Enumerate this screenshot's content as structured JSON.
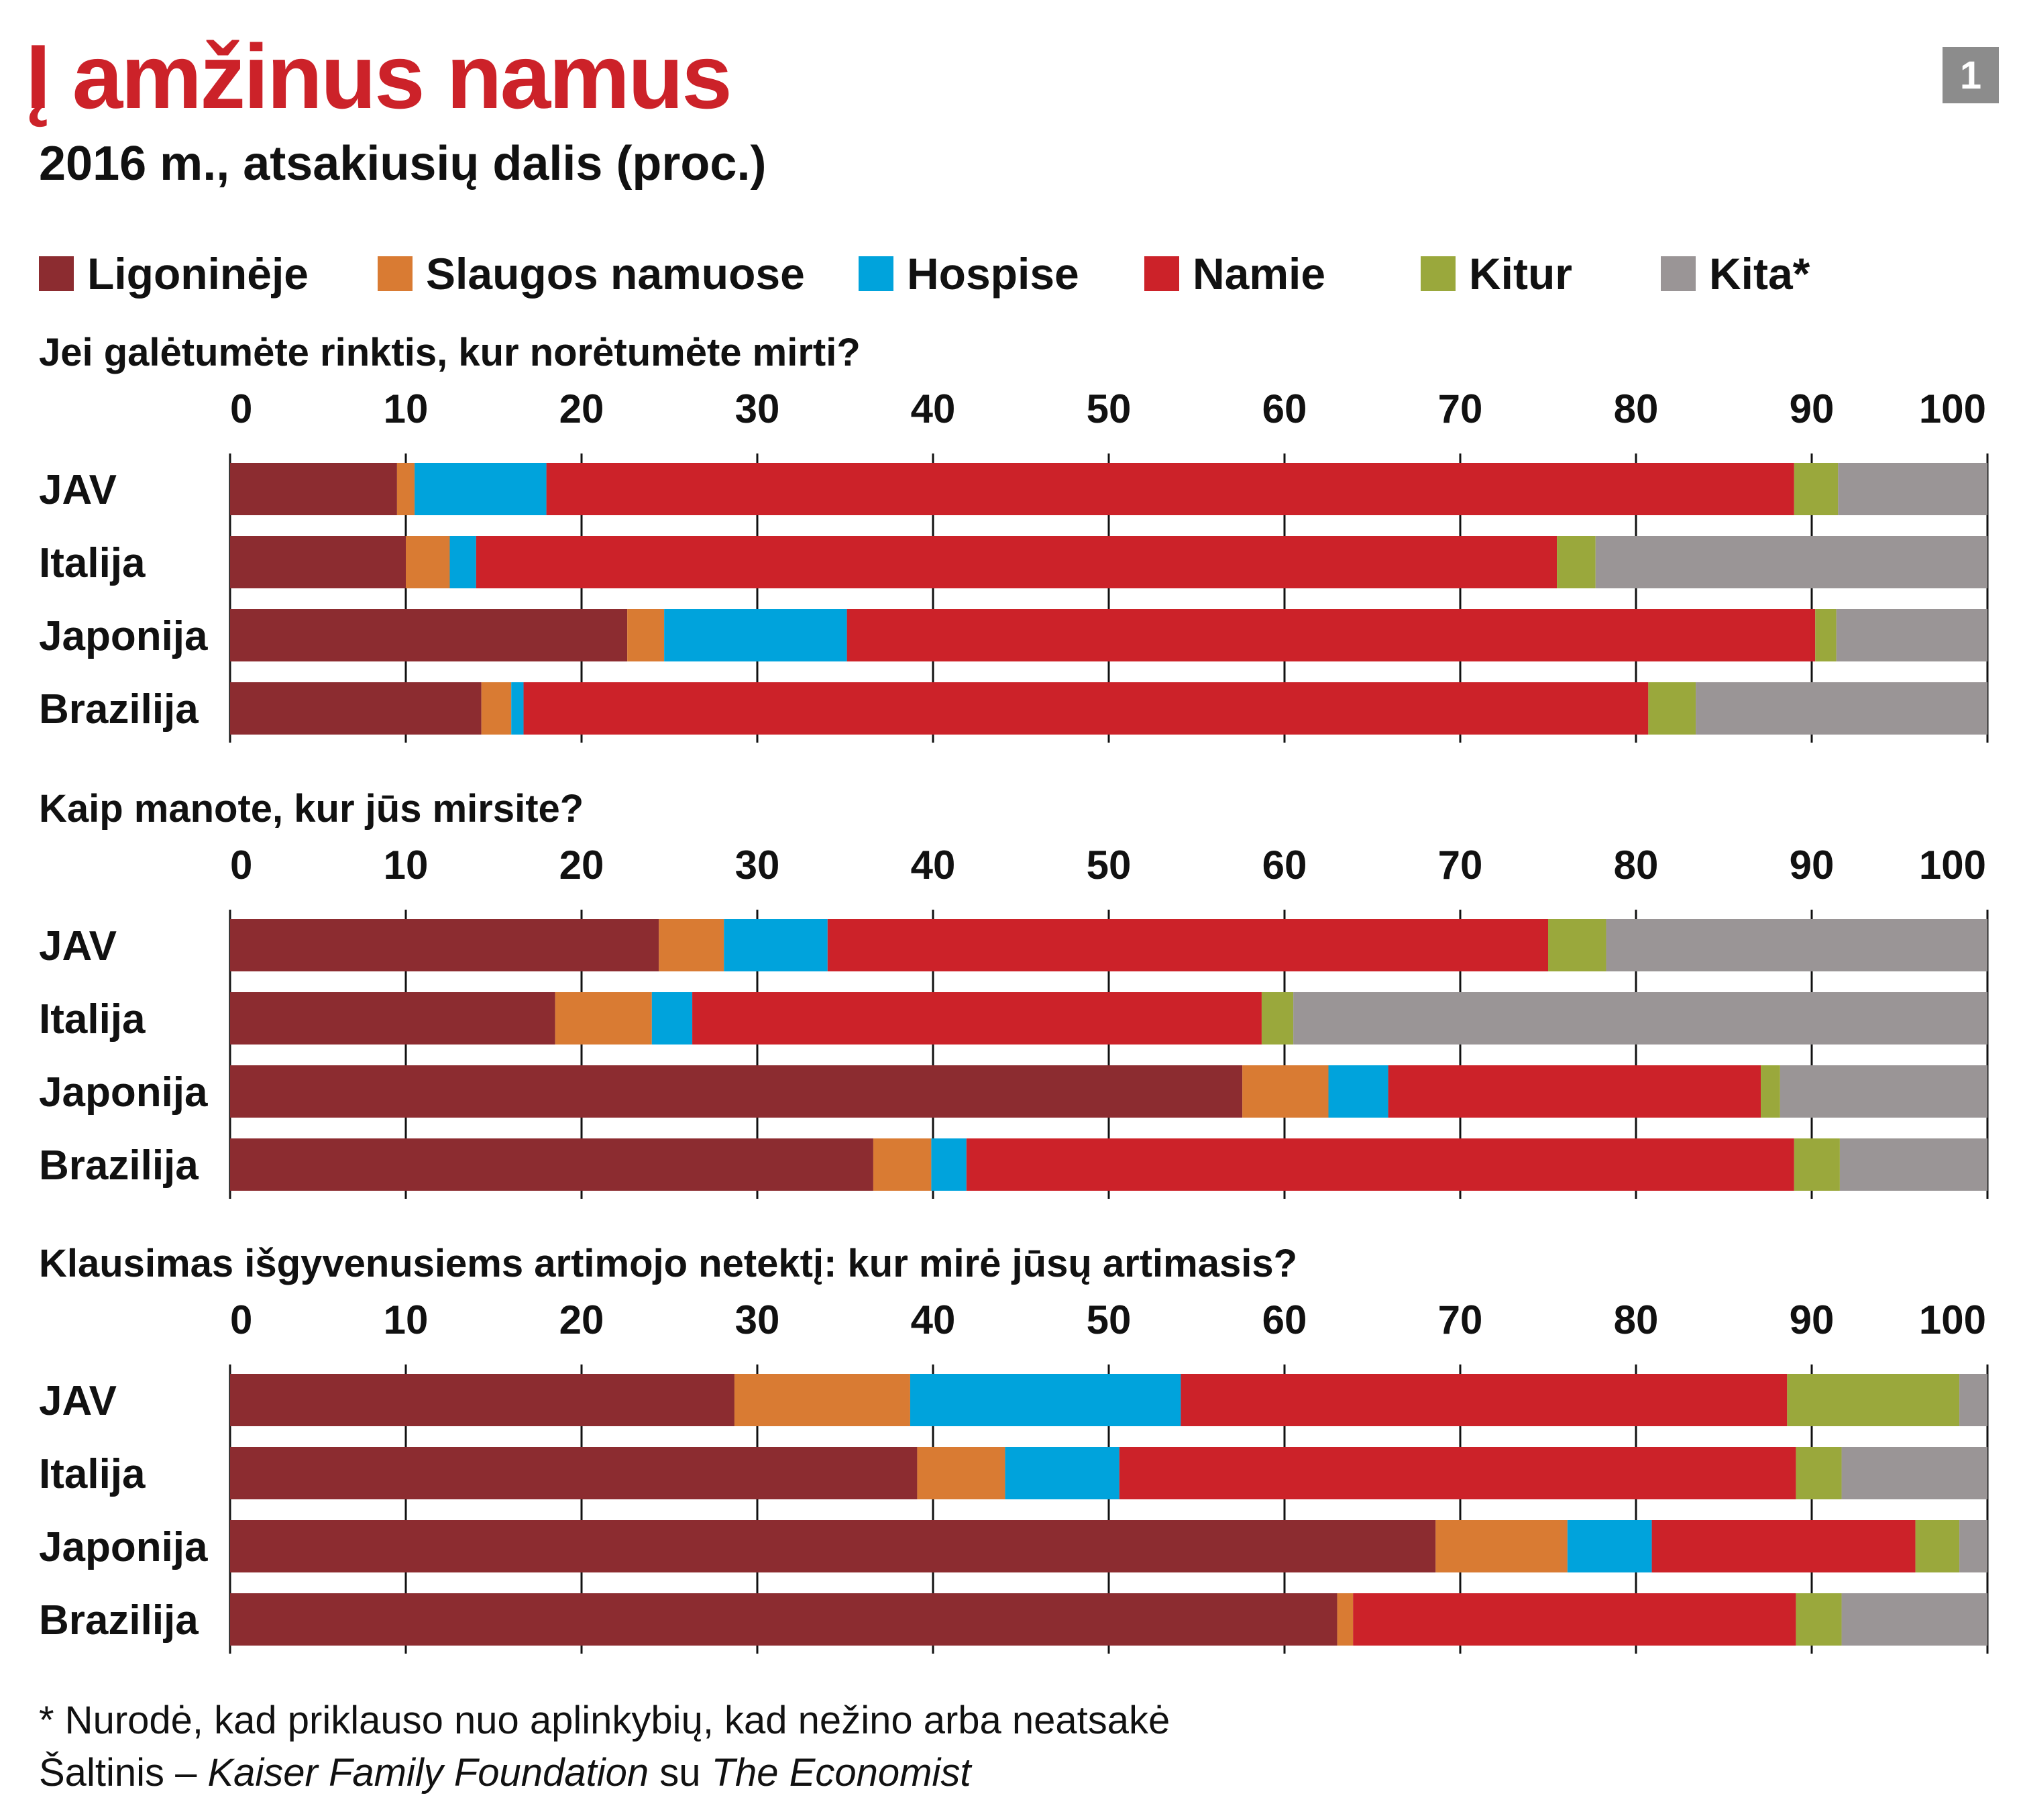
{
  "title": "Į amžinus namus",
  "subtitle": "2016 m., atsakiusių dalis (proc.)",
  "badge": "1",
  "legend": [
    {
      "label": "Ligoninėje",
      "color": "#8c2c30"
    },
    {
      "label": "Slaugos namuose",
      "color": "#d97b33"
    },
    {
      "label": "Hospise",
      "color": "#00a3dc"
    },
    {
      "label": "Namie",
      "color": "#cc2229"
    },
    {
      "label": "Kitur",
      "color": "#9aa83c"
    },
    {
      "label": "Kita*",
      "color": "#9a9596"
    }
  ],
  "chart_data": {
    "type": "bar",
    "orientation": "horizontal",
    "stacked": true,
    "xlim": [
      0,
      100
    ],
    "ticks": [
      "0",
      "10",
      "20",
      "30",
      "40",
      "50",
      "60",
      "70",
      "80",
      "90",
      "100"
    ],
    "series_names": [
      "Ligoninėje",
      "Slaugos namuose",
      "Hospise",
      "Namie",
      "Kitur",
      "Kita*"
    ],
    "panels": [
      {
        "question": "Jei galėtumėte rinktis, kur norėtumėte mirti?",
        "categories": [
          "JAV",
          "Italija",
          "Japonija",
          "Brazilija"
        ],
        "values": [
          [
            9.5,
            1,
            7.5,
            71,
            2.5,
            8.5
          ],
          [
            10,
            2.5,
            1.5,
            61.5,
            2.2,
            22.3
          ],
          [
            22.6,
            2.1,
            10.4,
            55.1,
            1.2,
            8.6
          ],
          [
            14.3,
            1.7,
            0.7,
            64,
            2.7,
            16.6
          ]
        ]
      },
      {
        "question": "Kaip manote, kur jūs mirsite?",
        "categories": [
          "JAV",
          "Italija",
          "Japonija",
          "Brazilija"
        ],
        "values": [
          [
            24.4,
            3.7,
            5.9,
            41,
            3.3,
            21.7
          ],
          [
            18.5,
            5.5,
            2.3,
            32.4,
            1.8,
            39.5
          ],
          [
            57.6,
            4.9,
            3.4,
            21.2,
            1.1,
            11.8
          ],
          [
            36.6,
            3.3,
            2,
            47.1,
            2.6,
            8.4
          ]
        ]
      },
      {
        "question": "Klausimas išgyvenusiems artimojo netektį: kur mirė jūsų artimasis?",
        "categories": [
          "JAV",
          "Italija",
          "Japonija",
          "Brazilija"
        ],
        "values": [
          [
            28.7,
            10,
            15.4,
            34.5,
            9.8,
            1.6
          ],
          [
            39.1,
            5,
            6.5,
            38.5,
            2.6,
            8.3
          ],
          [
            68.6,
            7.5,
            4.8,
            15,
            2.5,
            1.6
          ],
          [
            63,
            0.9,
            0,
            25.2,
            2.6,
            8.3
          ]
        ]
      }
    ]
  },
  "footnote": "* Nurodė, kad priklauso nuo aplinkybių, kad nežino arba neatsakė",
  "source": {
    "prefix": "Šaltinis – ",
    "org": "Kaiser Family Foundation",
    "mid": " su ",
    "pub": "The Economist"
  }
}
